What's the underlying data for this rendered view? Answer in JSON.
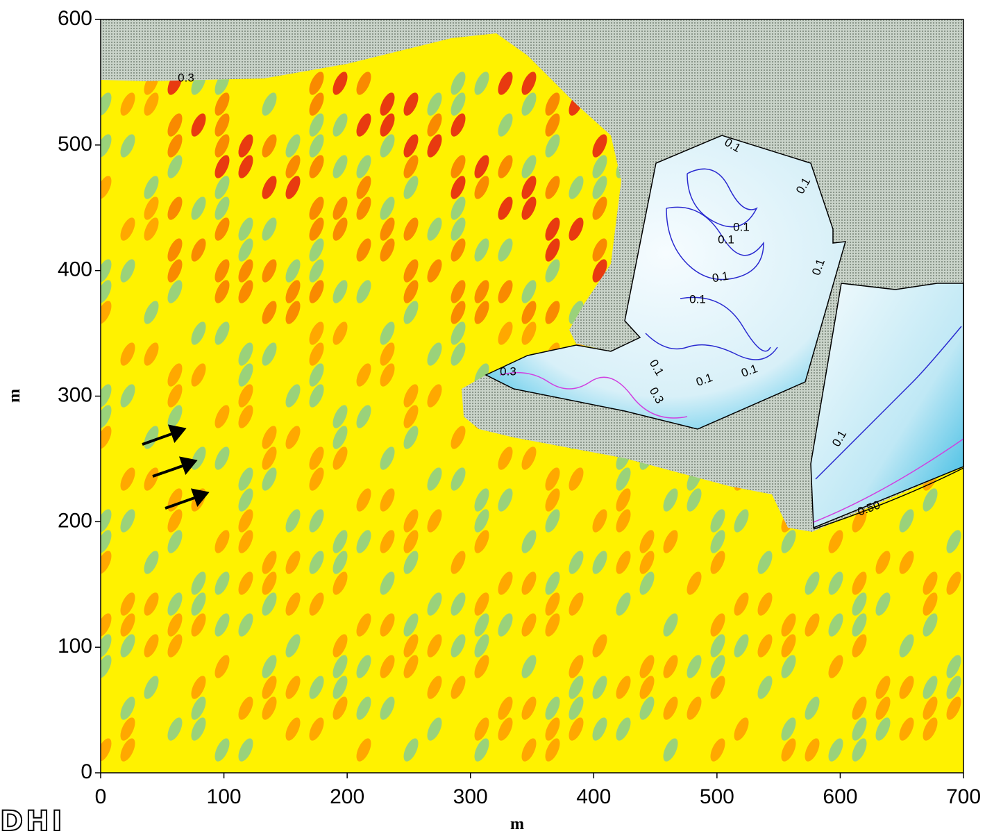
{
  "chart_data": {
    "type": "contour",
    "xlabel": "m",
    "ylabel": "m",
    "xlim": [
      0,
      700
    ],
    "ylim": [
      0,
      600
    ],
    "xticks": [
      0,
      100,
      200,
      300,
      400,
      500,
      600,
      700
    ],
    "yticks": [
      0,
      100,
      200,
      300,
      400,
      500,
      600
    ],
    "contour_labels": [
      0.3,
      0.1,
      0.1,
      0.1,
      0.1,
      0.1,
      0.1,
      0.1,
      0.3,
      0.1,
      0.3,
      0.1,
      0.1,
      0.1,
      {
        "value": 0.5,
        "label": "0.50"
      }
    ],
    "logo": "DHI"
  }
}
